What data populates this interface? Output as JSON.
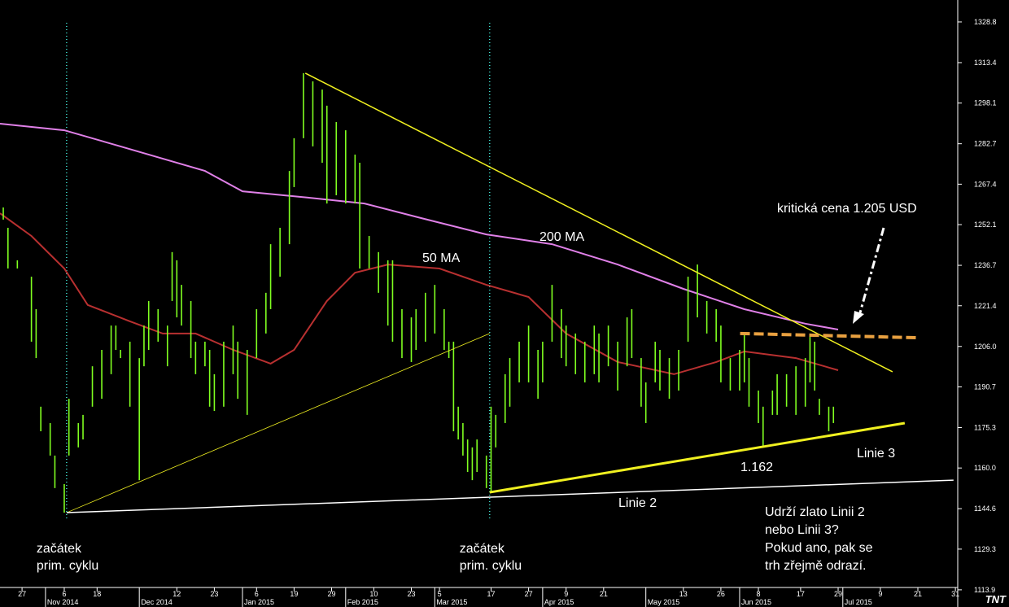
{
  "chart_data": {
    "type": "hl",
    "logo": "TNT",
    "xlim": [
      -4.7,
      199.5
    ],
    "ylim": [
      1107.4,
      1337.1
    ],
    "yticks": [
      1328.8,
      1313.4,
      1298.1,
      1282.7,
      1267.4,
      1252.1,
      1236.7,
      1221.4,
      {
        "value": 1206,
        "label": "1206.0"
      },
      1190.7,
      1175.3,
      {
        "value": 1160,
        "label": "1160.0"
      },
      1144.6,
      1129.3,
      1113.9
    ],
    "xticks": [
      {
        "value": 0,
        "label": "27"
      },
      {
        "value": 9,
        "label": "6"
      },
      {
        "value": 16,
        "label": "18"
      },
      {
        "value": 33,
        "label": "12"
      },
      {
        "value": 41,
        "label": "23"
      },
      {
        "value": 50,
        "label": "6"
      },
      {
        "value": 58,
        "label": "19"
      },
      {
        "value": 66,
        "label": "29"
      },
      {
        "value": 75,
        "label": "10"
      },
      {
        "value": 83,
        "label": "23"
      },
      {
        "value": 89,
        "label": "5"
      },
      {
        "value": 100,
        "label": "17"
      },
      {
        "value": 108,
        "label": "27"
      },
      {
        "value": 116,
        "label": "9"
      },
      {
        "value": 124,
        "label": "21"
      },
      {
        "value": 141,
        "label": "13"
      },
      {
        "value": 149,
        "label": "26"
      },
      {
        "value": 157,
        "label": "8"
      },
      {
        "value": 166,
        "label": "17"
      },
      {
        "value": 174,
        "label": "29"
      },
      {
        "value": 183,
        "label": "9"
      },
      {
        "value": 191,
        "label": "21"
      },
      {
        "value": 199,
        "label": "31"
      }
    ],
    "month_ticks": [
      {
        "value": 5,
        "label": "Nov 2014"
      },
      {
        "value": 25,
        "label": "Dec 2014"
      },
      {
        "value": 47,
        "label": "Jan 2015"
      },
      {
        "value": 69,
        "label": "Feb 2015"
      },
      {
        "value": 88,
        "label": "Mar 2015"
      },
      {
        "value": 111,
        "label": "Apr 2015"
      },
      {
        "value": 133,
        "label": "May 2015"
      },
      {
        "value": 153,
        "label": "Jun 2015"
      },
      {
        "value": 175,
        "label": "Jul 2015"
      }
    ],
    "bars": {
      "color": "#80ff20",
      "x": [
        -4,
        -3,
        -1,
        2,
        3,
        4,
        6,
        7,
        9,
        10,
        12,
        13,
        15,
        17,
        19,
        20,
        21,
        23,
        25,
        26,
        27,
        29,
        31,
        32,
        33,
        34,
        36,
        37,
        39,
        40,
        41,
        43,
        45,
        46,
        48,
        50,
        52,
        53,
        55,
        57,
        58,
        60,
        62,
        64,
        65,
        67,
        69,
        71,
        72,
        74,
        76,
        78,
        79,
        81,
        83,
        84,
        86,
        88,
        90,
        91,
        92,
        93,
        94,
        95,
        96,
        97,
        99,
        100,
        101,
        103,
        104,
        106,
        108,
        110,
        111,
        113,
        115,
        116,
        118,
        120,
        122,
        123,
        125,
        127,
        129,
        130,
        132,
        133,
        135,
        136,
        138,
        140,
        142,
        144,
        146,
        148,
        149,
        151,
        153,
        154,
        155,
        157,
        158,
        160,
        161,
        163,
        165,
        167,
        168,
        169,
        170,
        172,
        173
      ],
      "high": [
        1258.6,
        1250.9,
        1238.6,
        1232.4,
        1220.1,
        1183.2,
        1177.0,
        1164.7,
        1153.9,
        1186.2,
        1177.0,
        1180.1,
        1198.5,
        1204.7,
        1213.9,
        1213.9,
        1204.7,
        1207.8,
        1201.6,
        1213.9,
        1223.2,
        1220.1,
        1213.9,
        1241.7,
        1238.6,
        1229.3,
        1223.2,
        1207.8,
        1207.8,
        1204.7,
        1195.5,
        1207.8,
        1213.9,
        1207.8,
        1204.7,
        1220.1,
        1226.3,
        1244.7,
        1250.9,
        1272.4,
        1284.8,
        1309.4,
        1306.3,
        1303.2,
        1297.1,
        1290.9,
        1287.8,
        1278.6,
        1275.5,
        1247.8,
        1241.7,
        1238.6,
        1238.6,
        1220.1,
        1217.0,
        1220.1,
        1226.3,
        1229.3,
        1220.1,
        1207.8,
        1207.8,
        1183.2,
        1177.0,
        1170.8,
        1167.8,
        1170.8,
        1164.7,
        1183.2,
        1180.1,
        1195.5,
        1201.6,
        1207.8,
        1213.9,
        1204.7,
        1207.8,
        1229.3,
        1220.1,
        1213.9,
        1210.9,
        1207.8,
        1213.9,
        1210.9,
        1213.9,
        1207.8,
        1217.0,
        1220.1,
        1201.6,
        1192.4,
        1207.8,
        1204.7,
        1201.6,
        1204.7,
        1232.4,
        1237.0,
        1223.2,
        1220.1,
        1213.9,
        1201.6,
        1204.7,
        1210.9,
        1201.6,
        1189.3,
        1183.2,
        1189.3,
        1195.5,
        1195.5,
        1198.5,
        1201.6,
        1210.9,
        1207.8,
        1186.2,
        1183.2,
        1183.2
      ],
      "low": [
        1254.0,
        1235.5,
        1235.5,
        1207.8,
        1201.6,
        1173.9,
        1164.7,
        1152.4,
        1143.1,
        1164.7,
        1167.8,
        1170.8,
        1183.2,
        1186.2,
        1195.5,
        1204.7,
        1201.6,
        1183.2,
        1155.4,
        1198.5,
        1204.7,
        1207.8,
        1198.5,
        1223.2,
        1217.0,
        1213.9,
        1201.6,
        1195.5,
        1198.5,
        1183.2,
        1181.6,
        1183.2,
        1195.5,
        1186.2,
        1180.1,
        1201.6,
        1210.9,
        1220.1,
        1232.4,
        1244.7,
        1266.3,
        1284.8,
        1281.7,
        1275.5,
        1260.1,
        1263.2,
        1260.1,
        1260.1,
        1235.5,
        1235.5,
        1226.3,
        1213.9,
        1207.8,
        1201.6,
        1200.1,
        1204.7,
        1207.8,
        1210.9,
        1204.7,
        1201.6,
        1173.9,
        1170.8,
        1164.7,
        1158.5,
        1155.4,
        1158.5,
        1152.4,
        1150.8,
        1167.8,
        1177.0,
        1183.2,
        1192.4,
        1192.4,
        1186.2,
        1192.4,
        1207.8,
        1201.6,
        1198.5,
        1195.5,
        1192.4,
        1195.5,
        1192.4,
        1198.5,
        1189.3,
        1198.5,
        1201.6,
        1183.2,
        1177.0,
        1192.4,
        1189.3,
        1186.2,
        1189.3,
        1207.8,
        1217.0,
        1210.9,
        1207.8,
        1192.4,
        1189.3,
        1189.3,
        1192.4,
        1183.2,
        1177.0,
        1168.4,
        1180.1,
        1180.1,
        1183.2,
        1180.1,
        1183.2,
        1192.4,
        1189.3,
        1180.1,
        1173.9,
        1177.0
      ]
    },
    "series": [
      {
        "name": "200 MA",
        "color": "#e080e8",
        "x": [
          -4.7,
          9,
          21,
          39,
          47,
          61,
          73,
          85,
          99,
          113,
          127,
          141,
          154,
          167,
          174
        ],
        "values": [
          1290.3,
          1287.8,
          1281.7,
          1272.4,
          1264.7,
          1262.3,
          1260.1,
          1254.6,
          1248.4,
          1244.7,
          1237.0,
          1227.8,
          1220.1,
          1214.6,
          1212.4
        ]
      },
      {
        "name": "50 MA",
        "color": "#b83030",
        "x": [
          -4.7,
          2,
          9,
          14,
          23,
          30,
          37,
          45,
          53,
          58,
          65,
          71,
          78,
          89,
          99,
          108,
          116,
          127,
          139,
          148,
          154,
          165,
          174
        ],
        "values": [
          1256.4,
          1247.8,
          1235.5,
          1221.7,
          1215.5,
          1210.9,
          1210.9,
          1204.7,
          1199.5,
          1204.7,
          1223.2,
          1233.9,
          1237.0,
          1235.5,
          1229.3,
          1224.7,
          1210.9,
          1200.1,
          1195.5,
          1200.1,
          1204.1,
          1201.6,
          1197.0
        ]
      }
    ],
    "trendlines": [
      {
        "color": "#f0f020",
        "width": 1.5,
        "dash": false,
        "x": [
          60.4,
          185.6
        ],
        "values": [
          1309.4,
          1196.4
        ]
      },
      {
        "color": "#f0f020",
        "width": 0.8,
        "dash": false,
        "x": [
          9.5,
          99.7
        ],
        "values": [
          1143.1,
          1210.9
        ]
      },
      {
        "color": "#ffffff",
        "width": 1.5,
        "dash": false,
        "x": [
          9.5,
          198.6
        ],
        "values": [
          1143.1,
          1155.4
        ]
      },
      {
        "color": "#f0f020",
        "width": 3,
        "dash": false,
        "x": [
          99.7,
          188.2
        ],
        "values": [
          1150.8,
          1177.0
        ]
      },
      {
        "color": "#e8a040",
        "width": 4,
        "dash": true,
        "x": [
          153.1,
          190.8
        ],
        "values": [
          1210.9,
          1209.3
        ]
      }
    ],
    "cycle_markers": {
      "color": "#40e0d0",
      "x": [
        9.5,
        99.7
      ],
      "labels": [
        [
          "začátek",
          "prim. cyklu"
        ],
        [
          "začátek",
          "prim. cyklu"
        ]
      ]
    },
    "annotations": [
      "kritická cena 1.205 USD",
      "1.162",
      "Linie 3",
      "Linie 2",
      "Udrží zlato Linii 2",
      "nebo Linii 3?",
      "Pokud ano, pak se",
      "trh zřejmě odrazí."
    ]
  }
}
